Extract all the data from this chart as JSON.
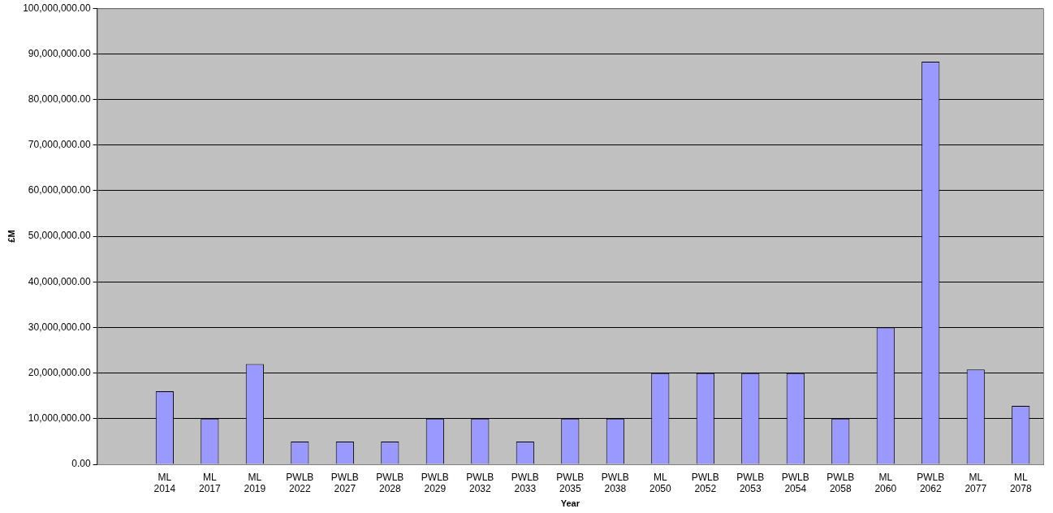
{
  "chart_data": {
    "type": "bar",
    "xlabel": "Year",
    "ylabel": "£M",
    "categories": [
      null,
      "ML 2014",
      "ML 2017",
      "ML 2019",
      "PWLB 2022",
      "PWLB 2027",
      "PWLB 2028",
      "PWLB 2029",
      "PWLB 2032",
      "PWLB 2033",
      "PWLB 2035",
      "PWLB 2038",
      "ML 2050",
      "PWLB 2052",
      "PWLB 2053",
      "PWLB 2054",
      "PWLB 2058",
      "ML 2060",
      "PWLB 2062",
      "ML 2077",
      "ML 2078"
    ],
    "values": [
      null,
      16000000,
      10000000,
      22000000,
      5000000,
      5000000,
      5000000,
      10000000,
      10000000,
      5000000,
      10000000,
      10000000,
      20000000,
      20000000,
      20000000,
      20000000,
      10000000,
      30000000,
      88300000,
      20800000,
      12800000
    ],
    "color": "#9999ff",
    "ylim": [
      0,
      100000000
    ],
    "yticks": [
      {
        "value": 0,
        "label": "0.00"
      },
      {
        "value": 10000000,
        "label": "10,000,000.00"
      },
      {
        "value": 20000000,
        "label": "20,000,000.00"
      },
      {
        "value": 30000000,
        "label": "30,000,000.00"
      },
      {
        "value": 40000000,
        "label": "40,000,000.00"
      },
      {
        "value": 50000000,
        "label": "50,000,000.00"
      },
      {
        "value": 60000000,
        "label": "60,000,000.00"
      },
      {
        "value": 70000000,
        "label": "70,000,000.00"
      },
      {
        "value": 80000000,
        "label": "80,000,000.00"
      },
      {
        "value": 90000000,
        "label": "90,000,000.00"
      },
      {
        "value": 100000000,
        "label": "100,000,000.00"
      }
    ],
    "grid": "y",
    "legend": false
  }
}
